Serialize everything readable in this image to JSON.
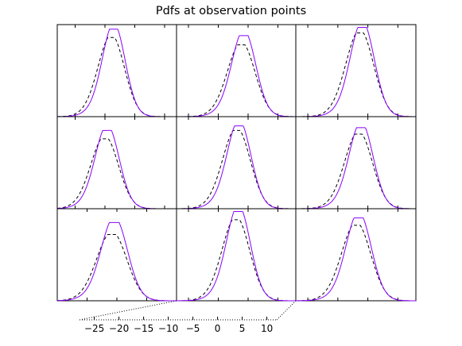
{
  "chart_data": {
    "type": "line",
    "title": "Pdfs at observation points",
    "grid": false,
    "layout": "3x3 grid of panels",
    "series_styles": [
      {
        "style": "solid",
        "color": "#8a00ff"
      },
      {
        "style": "dashed",
        "color": "#000000"
      }
    ],
    "inset_axis": {
      "ticks": [
        -25,
        -20,
        -15,
        -10,
        -5,
        0,
        5,
        10
      ],
      "tick_labels": [
        "−25",
        "−20",
        "−15",
        "−10",
        "−5",
        "0",
        "5",
        "10"
      ],
      "xlim": [
        -28,
        12
      ]
    },
    "panels": [
      {
        "row": 0,
        "col": 0,
        "mean": -18.6,
        "sd": 2.0,
        "solid_peak": 0.95,
        "dashed_peak": 0.86,
        "xlim": [
          -28,
          -8
        ]
      },
      {
        "row": 0,
        "col": 1,
        "mean": 4.2,
        "sd": 2.1,
        "solid_peak": 0.88,
        "dashed_peak": 0.78,
        "xlim": [
          -7,
          13
        ]
      },
      {
        "row": 0,
        "col": 2,
        "mean": 4.0,
        "sd": 2.1,
        "solid_peak": 0.97,
        "dashed_peak": 0.91,
        "xlim": [
          -7,
          13
        ]
      },
      {
        "row": 1,
        "col": 0,
        "mean": -19.7,
        "sd": 2.1,
        "solid_peak": 0.85,
        "dashed_peak": 0.76,
        "xlim": [
          -28,
          -8
        ]
      },
      {
        "row": 1,
        "col": 1,
        "mean": 3.4,
        "sd": 2.1,
        "solid_peak": 0.9,
        "dashed_peak": 0.85,
        "xlim": [
          -7,
          13
        ]
      },
      {
        "row": 1,
        "col": 2,
        "mean": 3.8,
        "sd": 2.1,
        "solid_peak": 0.88,
        "dashed_peak": 0.81,
        "xlim": [
          -7,
          13
        ]
      },
      {
        "row": 2,
        "col": 0,
        "mean": -20.5,
        "sd": 2.3,
        "solid_peak": 0.85,
        "dashed_peak": 0.72,
        "xlim": [
          -30,
          -10
        ]
      },
      {
        "row": 2,
        "col": 1,
        "mean": 3.3,
        "sd": 2.1,
        "solid_peak": 0.97,
        "dashed_peak": 0.88,
        "xlim": [
          -7,
          13
        ]
      },
      {
        "row": 2,
        "col": 2,
        "mean": 3.4,
        "sd": 2.2,
        "solid_peak": 0.9,
        "dashed_peak": 0.82,
        "xlim": [
          -7,
          13
        ]
      }
    ]
  }
}
